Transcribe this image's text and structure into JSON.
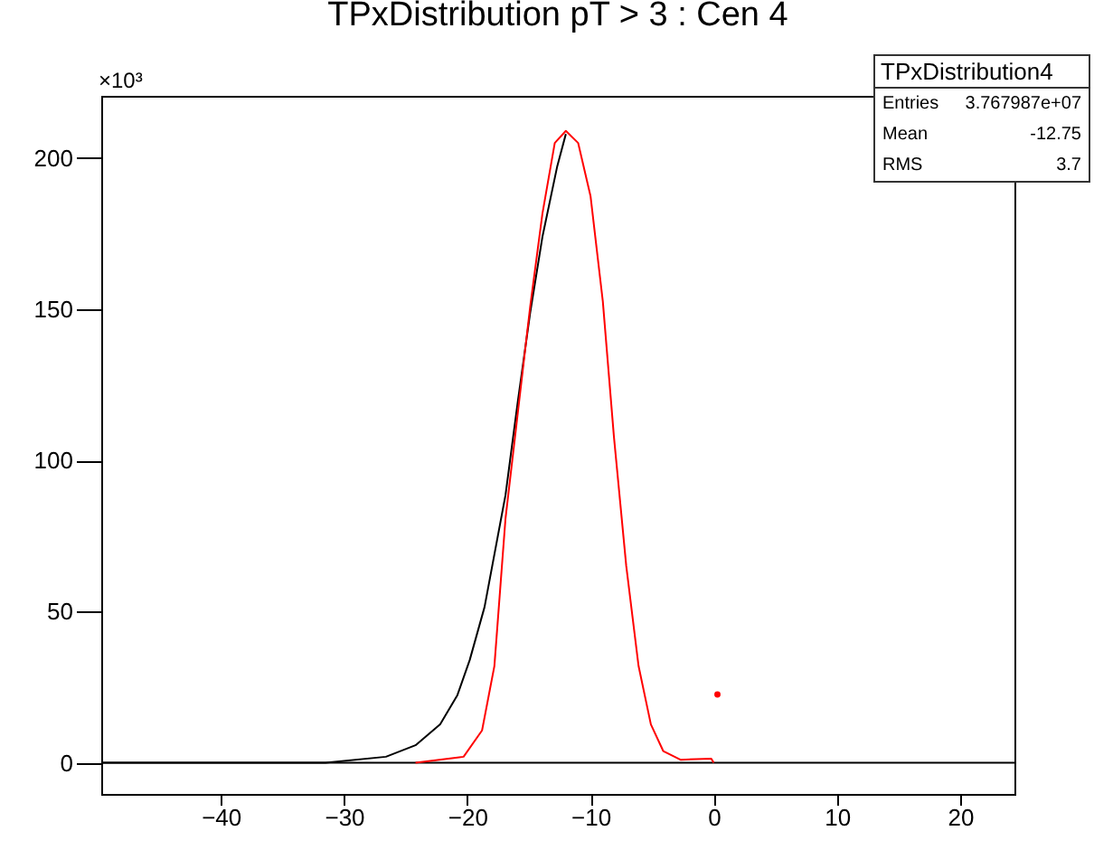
{
  "chart_data": {
    "type": "line",
    "title": "TPxDistribution pT > 3 : Cen 4",
    "ylabel": "×10³",
    "xlim": [
      -49.7,
      24.4
    ],
    "ylim": [
      -10.3,
      220.6
    ],
    "xticks": [
      -40,
      -30,
      -20,
      -10,
      0,
      10,
      20
    ],
    "yticks": [
      0,
      50,
      100,
      150,
      200
    ],
    "series": [
      {
        "color": "#000000",
        "x": [
          -49.7,
          -31.5,
          -26.6,
          -24.2,
          -22.2,
          -20.8,
          -19.8,
          -18.6,
          -16.9,
          -15.9,
          -14.9,
          -13.9,
          -12.7,
          -12.0
        ],
        "values": [
          0,
          0,
          2.0,
          5.8,
          12.7,
          22.4,
          34.0,
          51.5,
          88.5,
          119.5,
          148.7,
          174,
          197.3,
          208
        ]
      },
      {
        "color": "#ff0000",
        "x": [
          -24.2,
          -20.3,
          -18.8,
          -17.8,
          -16.9,
          -15.9,
          -14.9,
          -13.9,
          -12.9,
          -12.0,
          -11.0,
          -10.0,
          -9.0,
          -8.1,
          -7.1,
          -6.1,
          -5.1,
          -4.1,
          -2.7,
          -0.2,
          0.0
        ],
        "values": [
          0,
          2.0,
          10.7,
          32,
          80.7,
          115.7,
          150.7,
          181.7,
          205,
          209,
          205,
          187.5,
          152.6,
          107.9,
          65.1,
          32,
          12.7,
          3.9,
          1.0,
          1.4,
          0
        ]
      },
      {
        "type": "scatter",
        "color": "#ff0000",
        "x": [
          0.3
        ],
        "values": [
          22.6
        ]
      }
    ],
    "ref_lines": [
      {
        "axis": "y",
        "value": 0,
        "color": "#000000"
      }
    ],
    "annotations": [
      "TPxDistribution4",
      "Entries",
      "3.767987e+07",
      "Mean",
      "-12.75",
      "RMS",
      "3.7"
    ]
  }
}
